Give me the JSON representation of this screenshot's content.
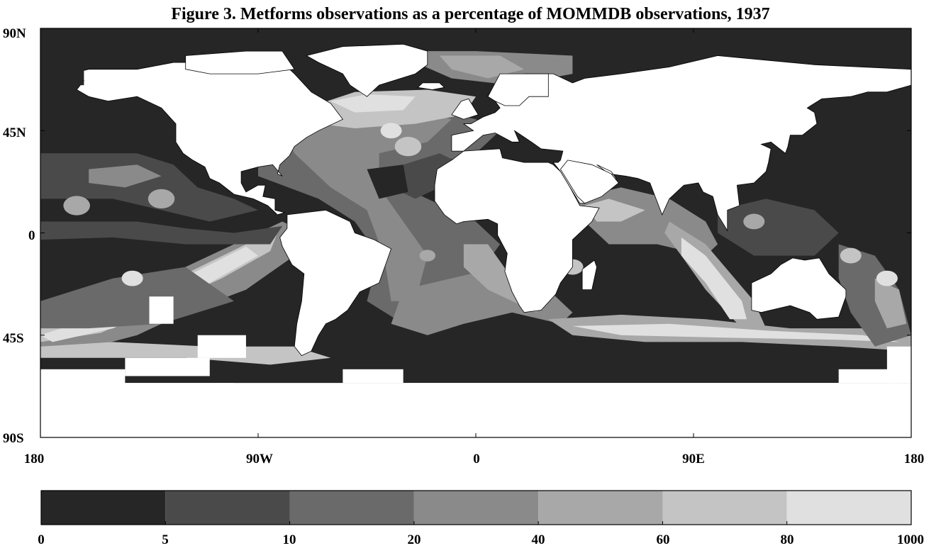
{
  "title": "Figure 3. Metforms observations as a percentage of MOMMDB observations,  1937",
  "lat_labels": [
    "90N",
    "45N",
    "0",
    "45S",
    "90S"
  ],
  "lon_labels": [
    "180",
    "90W",
    "0",
    "90E",
    "180"
  ],
  "colorbar": {
    "tick_labels": [
      "0",
      "5",
      "10",
      "20",
      "40",
      "60",
      "80",
      "1000"
    ],
    "bands": [
      {
        "from": 0,
        "to": 5,
        "color": "#262626"
      },
      {
        "from": 5,
        "to": 10,
        "color": "#4a4a4a"
      },
      {
        "from": 10,
        "to": 20,
        "color": "#6a6a6a"
      },
      {
        "from": 20,
        "to": 40,
        "color": "#8a8a8a"
      },
      {
        "from": 40,
        "to": 60,
        "color": "#a8a8a8"
      },
      {
        "from": 60,
        "to": 80,
        "color": "#c4c4c4"
      },
      {
        "from": 80,
        "to": 1000,
        "color": "#e0e0e0"
      }
    ]
  },
  "chart_data": {
    "type": "heatmap",
    "title": "Figure 3. Metforms observations as a percentage of MOMMDB observations,  1937",
    "x_ticks": [
      "180",
      "90W",
      "0",
      "90E",
      "180"
    ],
    "y_ticks": [
      "90N",
      "45N",
      "0",
      "45S",
      "90S"
    ],
    "levels": [
      0,
      5,
      10,
      20,
      40,
      60,
      80,
      1000
    ],
    "no_data_color": "#ffffff",
    "regions": [
      {
        "lon": [
          -180,
          -90
        ],
        "lat": [
          10,
          60
        ],
        "level": 0
      },
      {
        "lon": [
          -170,
          -90
        ],
        "lat": [
          -30,
          -45
        ],
        "level": 6
      },
      {
        "lon": [
          -150,
          -100
        ],
        "lat": [
          -15,
          -30
        ],
        "level": 5
      },
      {
        "lon": [
          -90,
          -30
        ],
        "lat": [
          -35,
          -60
        ],
        "level": 0
      },
      {
        "lon": [
          -60,
          -10
        ],
        "lat": [
          60,
          45
        ],
        "level": 6
      },
      {
        "lon": [
          -50,
          0
        ],
        "lat": [
          40,
          10
        ],
        "level": 3
      },
      {
        "lon": [
          -30,
          10
        ],
        "lat": [
          0,
          -30
        ],
        "level": 3
      },
      {
        "lon": [
          -20,
          10
        ],
        "lat": [
          -30,
          -40
        ],
        "level": 4
      },
      {
        "lon": [
          60,
          95
        ],
        "lat": [
          10,
          -40
        ],
        "level": 0
      },
      {
        "lon": [
          85,
          110
        ],
        "lat": [
          0,
          -40
        ],
        "level": 6
      },
      {
        "lon": [
          40,
          150
        ],
        "lat": [
          -40,
          -48
        ],
        "level": 6
      },
      {
        "lon": [
          110,
          180
        ],
        "lat": [
          60,
          0
        ],
        "level": 0
      },
      {
        "lon": [
          -180,
          180
        ],
        "lat": [
          -50,
          -67
        ],
        "level": 0
      }
    ]
  }
}
